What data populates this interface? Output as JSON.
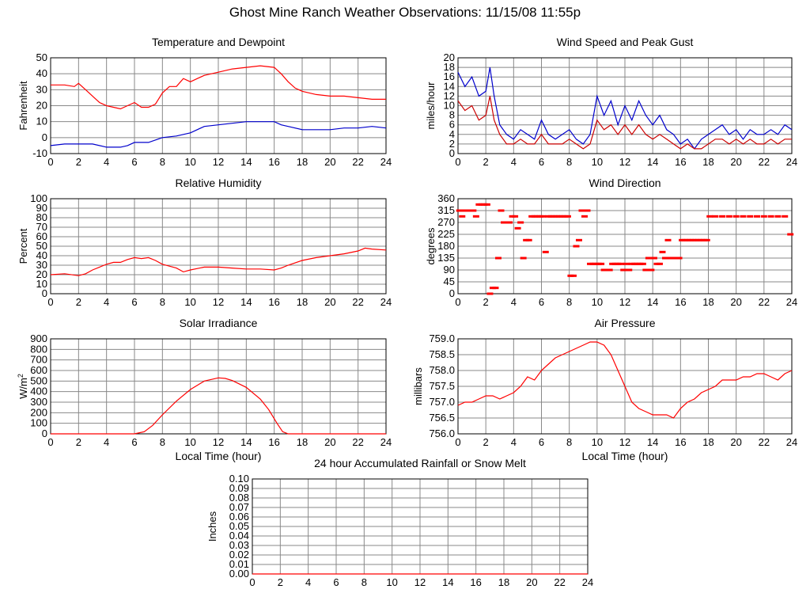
{
  "page_title": "Ghost Mine Ranch Weather Observations: 11/15/08 11:55p",
  "colors": {
    "temperature": "#ff0000",
    "dewpoint": "#0000cc",
    "grid": "#888888",
    "axis": "#000000"
  },
  "chart_data": [
    {
      "id": "temperature",
      "type": "line",
      "title": "Temperature and Dewpoint",
      "ylabel": "Fahrenheit",
      "xlabel": "",
      "xlim": [
        0,
        24
      ],
      "ylim": [
        -10,
        50
      ],
      "x_ticks": [
        0,
        2,
        4,
        6,
        8,
        10,
        12,
        14,
        16,
        18,
        20,
        22,
        24
      ],
      "y_ticks": [
        -10,
        0,
        10,
        20,
        30,
        40,
        50
      ],
      "grid": true,
      "series": [
        {
          "color": "#ff0000",
          "x": [
            0,
            1,
            1.7,
            2,
            2.5,
            3,
            3.5,
            4,
            4.5,
            5,
            5.5,
            6,
            6.5,
            7,
            7.5,
            8,
            8.5,
            9,
            9.5,
            10,
            10.5,
            11,
            11.5,
            12,
            13,
            14,
            15,
            16,
            16.5,
            17,
            17.5,
            18,
            19,
            20,
            21,
            22,
            23,
            24
          ],
          "values": [
            33,
            33,
            32,
            34,
            30,
            26,
            22,
            20,
            19,
            18,
            20,
            22,
            19,
            19,
            21,
            28,
            32,
            32,
            37,
            35,
            37,
            39,
            40,
            41,
            43,
            44,
            45,
            44,
            40,
            35,
            31,
            29,
            27,
            26,
            26,
            25,
            24,
            24
          ]
        },
        {
          "color": "#0000cc",
          "x": [
            0,
            1,
            2,
            3,
            4,
            5,
            5.5,
            6,
            7,
            8,
            9,
            10,
            11,
            12,
            13,
            14,
            15,
            16,
            16.5,
            17,
            18,
            19,
            20,
            21,
            22,
            23,
            24
          ],
          "values": [
            -5,
            -4,
            -4,
            -4,
            -6,
            -6,
            -5,
            -3,
            -3,
            0,
            1,
            3,
            7,
            8,
            9,
            10,
            10,
            10,
            8,
            7,
            5,
            5,
            5,
            6,
            6,
            7,
            6
          ]
        }
      ]
    },
    {
      "id": "wind-speed",
      "type": "line",
      "title": "Wind Speed and Peak Gust",
      "ylabel": "miles/hour",
      "xlabel": "",
      "xlim": [
        0,
        24
      ],
      "ylim": [
        0,
        20
      ],
      "x_ticks": [
        0,
        2,
        4,
        6,
        8,
        10,
        12,
        14,
        16,
        18,
        20,
        22,
        24
      ],
      "y_ticks": [
        0,
        2,
        4,
        6,
        8,
        10,
        12,
        14,
        16,
        18,
        20
      ],
      "grid": true,
      "series": [
        {
          "color": "#0000cc",
          "x": [
            0,
            0.5,
            1,
            1.5,
            2,
            2.3,
            2.6,
            3,
            3.5,
            4,
            4.5,
            5,
            5.5,
            6,
            6.5,
            7,
            7.5,
            8,
            8.5,
            9,
            9.5,
            10,
            10.5,
            11,
            11.5,
            12,
            12.5,
            13,
            13.5,
            14,
            14.5,
            15,
            15.5,
            16,
            16.5,
            17,
            17.5,
            18,
            18.5,
            19,
            19.5,
            20,
            20.5,
            21,
            21.5,
            22,
            22.5,
            23,
            23.5,
            24
          ],
          "values": [
            17,
            14,
            16,
            12,
            13,
            18,
            12,
            6,
            4,
            3,
            5,
            4,
            3,
            7,
            4,
            3,
            4,
            5,
            3,
            2,
            4,
            12,
            8,
            11,
            6,
            10,
            7,
            11,
            8,
            6,
            8,
            5,
            4,
            2,
            3,
            1,
            3,
            4,
            5,
            6,
            4,
            5,
            3,
            5,
            4,
            4,
            5,
            4,
            6,
            5
          ]
        },
        {
          "color": "#cc0000",
          "x": [
            0,
            0.5,
            1,
            1.5,
            2,
            2.3,
            2.6,
            3,
            3.5,
            4,
            4.5,
            5,
            5.5,
            6,
            6.5,
            7,
            7.5,
            8,
            8.5,
            9,
            9.5,
            10,
            10.5,
            11,
            11.5,
            12,
            12.5,
            13,
            13.5,
            14,
            14.5,
            15,
            15.5,
            16,
            16.5,
            17,
            17.5,
            18,
            18.5,
            19,
            19.5,
            20,
            20.5,
            21,
            21.5,
            22,
            22.5,
            23,
            23.5,
            24
          ],
          "values": [
            11,
            9,
            10,
            7,
            8,
            12,
            7,
            4,
            2,
            2,
            3,
            2,
            2,
            4,
            2,
            2,
            2,
            3,
            2,
            1,
            2,
            7,
            5,
            6,
            4,
            6,
            4,
            6,
            4,
            3,
            4,
            3,
            2,
            1,
            2,
            1,
            1,
            2,
            3,
            3,
            2,
            3,
            2,
            3,
            2,
            2,
            3,
            2,
            3,
            3
          ]
        }
      ]
    },
    {
      "id": "humidity",
      "type": "line",
      "title": "Relative Humidity",
      "ylabel": "Percent",
      "xlabel": "",
      "xlim": [
        0,
        24
      ],
      "ylim": [
        0,
        100
      ],
      "x_ticks": [
        0,
        2,
        4,
        6,
        8,
        10,
        12,
        14,
        16,
        18,
        20,
        22,
        24
      ],
      "y_ticks": [
        0,
        10,
        20,
        30,
        40,
        50,
        60,
        70,
        80,
        90,
        100
      ],
      "grid": true,
      "series": [
        {
          "color": "#ff0000",
          "x": [
            0,
            1,
            2,
            2.5,
            3,
            3.5,
            4,
            4.5,
            5,
            5.5,
            6,
            6.5,
            7,
            7.5,
            8,
            8.5,
            9,
            9.5,
            10,
            11,
            12,
            13,
            14,
            15,
            16,
            16.5,
            17,
            18,
            19,
            20,
            21,
            22,
            22.5,
            23,
            24
          ],
          "values": [
            20,
            21,
            19,
            21,
            25,
            28,
            31,
            33,
            33,
            36,
            38,
            37,
            38,
            35,
            31,
            29,
            27,
            23,
            25,
            28,
            28,
            27,
            26,
            26,
            25,
            27,
            30,
            35,
            38,
            40,
            42,
            45,
            48,
            47,
            46
          ]
        }
      ]
    },
    {
      "id": "wind-direction",
      "type": "scatter",
      "title": "Wind Direction",
      "ylabel": "degrees",
      "xlabel": "",
      "xlim": [
        0,
        24
      ],
      "ylim": [
        0,
        360
      ],
      "x_ticks": [
        0,
        2,
        4,
        6,
        8,
        10,
        12,
        14,
        16,
        18,
        20,
        22,
        24
      ],
      "y_ticks": [
        0,
        45,
        90,
        135,
        180,
        225,
        270,
        315,
        360
      ],
      "grid": true,
      "series": [
        {
          "color": "#ff0000",
          "x": [
            0.1,
            0.3,
            0.5,
            0.7,
            0.9,
            1.1,
            1.3,
            1.5,
            1.7,
            1.9,
            2.1,
            2.3,
            2.5,
            2.7,
            2.9,
            3.1,
            3.3,
            3.5,
            3.7,
            3.9,
            4.1,
            4.3,
            4.5,
            4.7,
            4.9,
            5.1,
            5.3,
            5.5,
            5.7,
            5.9,
            6.1,
            6.3,
            6.5,
            6.7,
            6.9,
            7.1,
            7.3,
            7.5,
            7.7,
            7.9,
            8.1,
            8.3,
            8.5,
            8.7,
            8.9,
            9.1,
            9.3,
            9.5,
            9.7,
            9.9,
            10.1,
            10.3,
            10.5,
            10.7,
            10.9,
            11.1,
            11.3,
            11.5,
            11.7,
            11.9,
            12.1,
            12.3,
            12.5,
            12.7,
            12.9,
            13.1,
            13.3,
            13.5,
            13.7,
            13.9,
            14.1,
            14.3,
            14.5,
            14.7,
            14.9,
            15.1,
            15.3,
            15.5,
            15.7,
            15.9,
            16.1,
            16.3,
            16.5,
            16.7,
            16.9,
            17.1,
            17.3,
            17.5,
            17.7,
            17.9,
            18.1,
            18.5,
            19,
            19.5,
            20,
            20.5,
            21,
            21.5,
            22,
            22.5,
            23,
            23.5,
            23.9
          ],
          "values": [
            315,
            293,
            315,
            315,
            315,
            315,
            293,
            338,
            338,
            338,
            338,
            0,
            22,
            22,
            135,
            315,
            270,
            270,
            270,
            293,
            293,
            248,
            270,
            135,
            203,
            203,
            293,
            293,
            293,
            293,
            293,
            158,
            293,
            293,
            293,
            293,
            293,
            293,
            293,
            293,
            68,
            68,
            180,
            203,
            315,
            293,
            315,
            113,
            113,
            113,
            113,
            113,
            90,
            90,
            90,
            113,
            113,
            113,
            113,
            90,
            113,
            90,
            113,
            113,
            113,
            113,
            113,
            90,
            135,
            90,
            135,
            113,
            113,
            158,
            135,
            203,
            135,
            135,
            135,
            135,
            203,
            203,
            203,
            203,
            203,
            203,
            203,
            203,
            203,
            203,
            293,
            293,
            293,
            293,
            293,
            293,
            293,
            293,
            293,
            293,
            293,
            293,
            225
          ]
        }
      ]
    },
    {
      "id": "solar",
      "type": "line",
      "title": "Solar Irradiance",
      "ylabel": "W/m2",
      "xlabel": "Local Time (hour)",
      "xlim": [
        0,
        24
      ],
      "ylim": [
        0,
        900
      ],
      "x_ticks": [
        0,
        2,
        4,
        6,
        8,
        10,
        12,
        14,
        16,
        18,
        20,
        22,
        24
      ],
      "y_ticks": [
        0,
        100,
        200,
        300,
        400,
        500,
        600,
        700,
        800,
        900
      ],
      "grid": true,
      "series": [
        {
          "color": "#ff0000",
          "x": [
            0,
            6,
            6.7,
            7.3,
            8,
            9,
            10,
            11,
            12,
            12.5,
            13,
            14,
            15,
            15.6,
            16.2,
            16.6,
            17,
            24
          ],
          "values": [
            0,
            0,
            20,
            80,
            180,
            310,
            420,
            500,
            530,
            525,
            505,
            440,
            330,
            230,
            100,
            20,
            0,
            0
          ]
        }
      ]
    },
    {
      "id": "pressure",
      "type": "line",
      "title": "Air Pressure",
      "ylabel": "millibars",
      "xlabel": "Local Time (hour)",
      "xlim": [
        0,
        24
      ],
      "ylim": [
        756.0,
        759.0
      ],
      "x_ticks": [
        0,
        2,
        4,
        6,
        8,
        10,
        12,
        14,
        16,
        18,
        20,
        22,
        24
      ],
      "y_ticks": [
        756.0,
        756.5,
        757.0,
        757.5,
        758.0,
        758.5,
        759.0
      ],
      "y_tick_labels": [
        "756.0",
        "756.5",
        "757.0",
        "757.5",
        "758.0",
        "758.5",
        "759.0"
      ],
      "grid": true,
      "series": [
        {
          "color": "#ff0000",
          "x": [
            0,
            0.5,
            1,
            1.5,
            2,
            2.5,
            3,
            3.5,
            4,
            4.5,
            5,
            5.5,
            6,
            6.5,
            7,
            7.5,
            8,
            8.5,
            9,
            9.5,
            10,
            10.5,
            11,
            11.5,
            12,
            12.5,
            13,
            13.5,
            14,
            14.5,
            15,
            15.5,
            16,
            16.5,
            17,
            17.5,
            18,
            18.5,
            19,
            19.5,
            20,
            20.5,
            21,
            21.5,
            22,
            22.5,
            23,
            23.5,
            24
          ],
          "values": [
            756.9,
            757.0,
            757.0,
            757.1,
            757.2,
            757.2,
            757.1,
            757.2,
            757.3,
            757.5,
            757.8,
            757.7,
            758.0,
            758.2,
            758.4,
            758.5,
            758.6,
            758.7,
            758.8,
            758.9,
            758.9,
            758.8,
            758.5,
            758.0,
            757.5,
            757.0,
            756.8,
            756.7,
            756.6,
            756.6,
            756.6,
            756.5,
            756.8,
            757.0,
            757.1,
            757.3,
            757.4,
            757.5,
            757.7,
            757.7,
            757.7,
            757.8,
            757.8,
            757.9,
            757.9,
            757.8,
            757.7,
            757.9,
            758.0
          ]
        }
      ]
    },
    {
      "id": "rainfall",
      "type": "line",
      "title": "24 hour Accumulated Rainfall or Snow Melt",
      "ylabel": "Inches",
      "xlabel": "",
      "xlim": [
        0,
        24
      ],
      "ylim": [
        0,
        0.1
      ],
      "x_ticks": [
        0,
        2,
        4,
        6,
        8,
        10,
        12,
        14,
        16,
        18,
        20,
        22,
        24
      ],
      "y_ticks": [
        0,
        0.01,
        0.02,
        0.03,
        0.04,
        0.05,
        0.06,
        0.07,
        0.08,
        0.09,
        0.1
      ],
      "y_tick_labels": [
        "0.00",
        "0.01",
        "0.02",
        "0.03",
        "0.04",
        "0.05",
        "0.06",
        "0.07",
        "0.08",
        "0.09",
        "0.10"
      ],
      "grid": true,
      "series": [
        {
          "color": "#ff0000",
          "x": [
            0,
            24
          ],
          "values": [
            0,
            0
          ]
        }
      ]
    }
  ]
}
